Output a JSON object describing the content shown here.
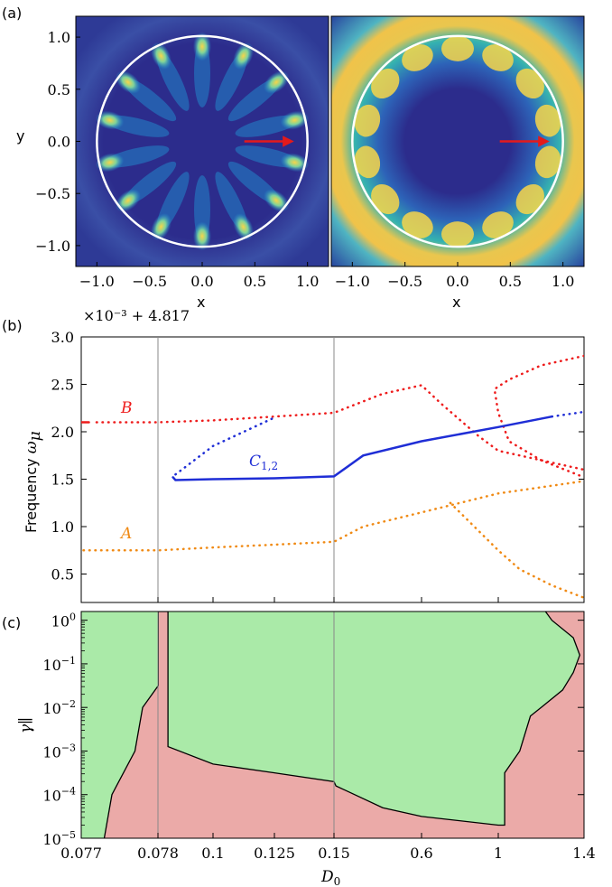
{
  "panel_labels": {
    "a": "(a)",
    "b": "(b)",
    "c": "(c)"
  },
  "colors": {
    "heat_low": "#2a2a8a",
    "heat_mid": "#1f9ad6",
    "heat_high": "#f7d54a",
    "circle": "#ffffff",
    "arrow": "#e31a1c",
    "series_B": "#ee1c1c",
    "series_C": "#1f2ed6",
    "series_A": "#f08a14",
    "region_green": "#aaeaa8",
    "region_red": "#ebaaa8",
    "vline": "#888888"
  },
  "chart_data": [
    {
      "type": "heatmap",
      "panel": "(a) left",
      "xlabel": "x",
      "ylabel": "y",
      "xlim": [
        -1.2,
        1.2
      ],
      "ylim": [
        -1.2,
        1.2
      ],
      "xticks": [
        -1.0,
        -0.5,
        0.0,
        0.5,
        1.0
      ],
      "xtick_labels": [
        "−1.0",
        "−0.5",
        "0.0",
        "0.5",
        "1.0"
      ],
      "yticks": [
        1.0,
        0.5,
        0.0,
        -0.5,
        -1.0
      ],
      "ytick_labels": [
        "1.0",
        "0.5",
        "0.0",
        "−0.5",
        "−1.0"
      ],
      "circle_radius": 1.0,
      "mode_lobes": 14,
      "mode_radius": 0.9,
      "arrow": {
        "from": [
          0.4,
          0.0
        ],
        "to": [
          0.85,
          0.0
        ]
      }
    },
    {
      "type": "heatmap",
      "panel": "(a) right",
      "xlabel": "x",
      "xlim": [
        -1.2,
        1.2
      ],
      "ylim": [
        -1.2,
        1.2
      ],
      "xticks": [
        -1.0,
        -0.5,
        0.0,
        0.5,
        1.0
      ],
      "xtick_labels": [
        "−1.0",
        "−0.5",
        "0.0",
        "0.5",
        "1.0"
      ],
      "circle_radius": 1.0,
      "mode_lobes": 14,
      "mode_radius": 0.88,
      "arrow": {
        "from": [
          0.4,
          0.0
        ],
        "to": [
          0.85,
          0.0
        ]
      }
    },
    {
      "type": "line",
      "panel": "(b)",
      "ylabel": "Frequency ωμ",
      "offset_label": "×10⁻³ + 4.817",
      "ylim": [
        0.2,
        3.0
      ],
      "yticks": [
        0.5,
        1.0,
        1.5,
        2.0,
        2.5,
        3.0
      ],
      "ytick_labels": [
        "0.5",
        "1.0",
        "1.5",
        "2.0",
        "2.5",
        "3.0"
      ],
      "x_axis_positions": [
        0.077,
        0.078,
        0.1,
        0.125,
        0.15,
        0.6,
        1,
        1.4
      ],
      "vlines": [
        0.078,
        0.15
      ],
      "series_labels": [
        "B",
        "C1,2",
        "A"
      ],
      "series": [
        {
          "name": "B",
          "style": "solid",
          "x": [
            0.0766,
            0.0771
          ],
          "y": [
            2.1,
            2.1
          ]
        },
        {
          "name": "B",
          "style": "dotted",
          "x": [
            0.0772,
            0.078,
            0.1,
            0.125,
            0.15,
            0.4,
            0.6,
            0.7,
            0.9,
            1.0,
            1.4
          ],
          "y": [
            2.1,
            2.1,
            2.12,
            2.16,
            2.2,
            2.4,
            2.49,
            2.3,
            1.95,
            1.8,
            1.6
          ]
        },
        {
          "name": "B",
          "style": "dotted",
          "x": [
            1.4,
            1.2,
            1.05,
            0.98,
            1.0,
            1.05,
            1.2,
            1.4
          ],
          "y": [
            2.8,
            2.7,
            2.55,
            2.45,
            2.2,
            1.9,
            1.7,
            1.52
          ]
        },
        {
          "name": "C1,2",
          "style": "dotted",
          "x": [
            0.085,
            0.1,
            0.125
          ],
          "y": [
            1.55,
            1.85,
            2.15
          ]
        },
        {
          "name": "C1,2",
          "style": "solid",
          "x": [
            0.084,
            0.085,
            0.1,
            0.125,
            0.15,
            0.3,
            0.6,
            1.0,
            1.25
          ],
          "y": [
            1.52,
            1.49,
            1.5,
            1.51,
            1.53,
            1.75,
            1.9,
            2.05,
            2.16
          ]
        },
        {
          "name": "C1,2",
          "style": "dotted",
          "x": [
            1.25,
            1.4
          ],
          "y": [
            2.16,
            2.21
          ]
        },
        {
          "name": "A",
          "style": "dotted",
          "x": [
            0.0768,
            0.078,
            0.1,
            0.125,
            0.15,
            0.3,
            0.6,
            0.8,
            1.0,
            1.4
          ],
          "y": [
            0.75,
            0.75,
            0.78,
            0.81,
            0.84,
            1.0,
            1.15,
            1.25,
            1.35,
            1.48
          ]
        },
        {
          "name": "A",
          "style": "dotted",
          "x": [
            0.75,
            0.9,
            1.0,
            1.1,
            1.25,
            1.4
          ],
          "y": [
            1.25,
            0.95,
            0.75,
            0.55,
            0.38,
            0.25
          ]
        }
      ]
    },
    {
      "type": "area",
      "panel": "(c)",
      "ylabel": "γ∥",
      "xlabel": "D0",
      "ylim_log10": [
        -5,
        0.2
      ],
      "yticks_log10": [
        0,
        -1,
        -2,
        -3,
        -4,
        -5
      ],
      "ytick_exponents": [
        "0",
        "−1",
        "−2",
        "−3",
        "−4",
        "−5"
      ],
      "ytick_base": "10",
      "x_axis_positions": [
        0.077,
        0.078,
        0.1,
        0.125,
        0.15,
        0.6,
        1,
        1.4
      ],
      "xtick_labels": [
        "0.077",
        "0.078",
        "0.1",
        "0.125",
        "0.15",
        "0.6",
        "1",
        "1.4"
      ],
      "vlines": [
        0.078,
        0.15
      ],
      "regions": [
        "green",
        "red"
      ],
      "boundary_x": [
        0.0773,
        0.0774,
        0.0777,
        0.0778,
        0.0781,
        0.0781,
        0.082,
        0.082,
        0.1,
        0.125,
        0.15,
        0.16,
        0.4,
        0.6,
        1.0,
        1.03,
        1.03,
        1.1,
        1.15,
        1.2,
        1.3,
        1.35,
        1.38,
        1.35,
        1.25,
        1.22
      ],
      "boundary_log10_y": [
        -5,
        -4.0,
        -3.0,
        -2.0,
        -1.5,
        0.2,
        0.2,
        -2.9,
        -3.3,
        -3.5,
        -3.7,
        -3.8,
        -4.3,
        -4.5,
        -4.7,
        -4.7,
        -3.5,
        -3.0,
        -2.2,
        -2.0,
        -1.6,
        -1.2,
        -0.8,
        -0.4,
        0.0,
        0.2
      ]
    }
  ]
}
